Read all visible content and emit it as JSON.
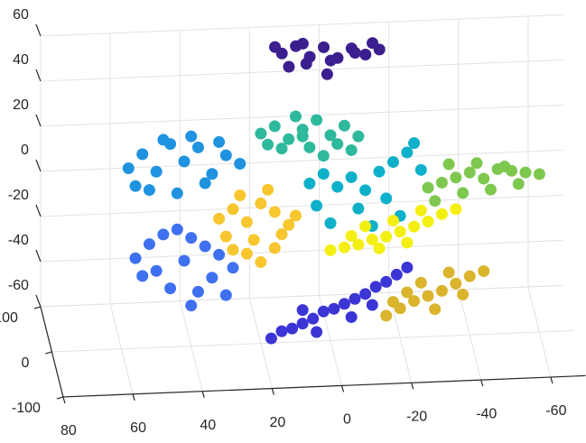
{
  "chart_data": {
    "type": "scatter3d",
    "xlim": [
      -70,
      80
    ],
    "ylim": [
      -100,
      100
    ],
    "zlim": [
      -60,
      60
    ],
    "xticks": [
      -60,
      -40,
      -20,
      0,
      20,
      40,
      60,
      80
    ],
    "yticks": [
      -100,
      0,
      100
    ],
    "zticks": [
      -60,
      -40,
      -20,
      0,
      20,
      40,
      60
    ],
    "grid": true,
    "series": [
      {
        "color": "#3b1f8f",
        "x": [
          12,
          8,
          4,
          0,
          -4,
          -8,
          -12,
          -16,
          10,
          5,
          -2,
          -9,
          14,
          -1,
          6,
          -14
        ],
        "y": [
          60,
          60,
          60,
          60,
          60,
          60,
          60,
          60,
          60,
          60,
          60,
          60,
          60,
          60,
          60,
          60
        ],
        "z": [
          56,
          59,
          54,
          58,
          53,
          57,
          54,
          56,
          50,
          51,
          52,
          55,
          59,
          46,
          60,
          59
        ]
      },
      {
        "color": "#2eb89c",
        "x": [
          20,
          16,
          12,
          8,
          4,
          0,
          -4,
          -8,
          14,
          6,
          -2,
          10,
          18,
          2,
          -6,
          8
        ],
        "y": [
          0,
          0,
          0,
          0,
          0,
          0,
          0,
          0,
          0,
          0,
          0,
          0,
          0,
          0,
          0,
          0
        ],
        "z": [
          33,
          36,
          30,
          34,
          38,
          31,
          35,
          30,
          26,
          26,
          27,
          40,
          28,
          22,
          24,
          31
        ]
      },
      {
        "color": "#1f93e0",
        "x": [
          58,
          54,
          50,
          46,
          42,
          38,
          34,
          30,
          26,
          52,
          44,
          36,
          48,
          40,
          32,
          56
        ],
        "y": [
          0,
          0,
          0,
          0,
          0,
          0,
          0,
          0,
          0,
          0,
          0,
          0,
          0,
          0,
          0,
          0
        ],
        "z": [
          20,
          26,
          18,
          30,
          22,
          28,
          16,
          24,
          20,
          10,
          8,
          12,
          32,
          33,
          30,
          12
        ]
      },
      {
        "color": "#0fb0c9",
        "x": [
          6,
          2,
          -2,
          -6,
          -10,
          -14,
          -18,
          -22,
          -24,
          4,
          -8,
          -16,
          -20,
          0,
          -12,
          -26
        ],
        "y": [
          0,
          0,
          0,
          0,
          0,
          0,
          0,
          0,
          0,
          0,
          0,
          0,
          0,
          0,
          0,
          0
        ],
        "z": [
          10,
          14,
          8,
          12,
          6,
          14,
          18,
          22,
          26,
          0,
          -2,
          2,
          -6,
          -8,
          -10,
          14
        ]
      },
      {
        "color": "#7ec850",
        "x": [
          -28,
          -32,
          -36,
          -40,
          -44,
          -48,
          -52,
          -56,
          -60,
          -34,
          -42,
          -50,
          -38,
          -46,
          -54,
          -30
        ],
        "y": [
          0,
          0,
          0,
          0,
          0,
          0,
          0,
          0,
          0,
          0,
          0,
          0,
          0,
          0,
          0,
          0
        ],
        "z": [
          6,
          8,
          10,
          12,
          9,
          13,
          12,
          11,
          10,
          16,
          16,
          14,
          3,
          4,
          6,
          0
        ]
      },
      {
        "color": "#f8c62e",
        "x": [
          32,
          28,
          24,
          20,
          16,
          12,
          30,
          22,
          14,
          26,
          18,
          24,
          20,
          28,
          16,
          10
        ],
        "y": [
          0,
          0,
          0,
          0,
          0,
          0,
          0,
          0,
          0,
          0,
          0,
          0,
          0,
          0,
          0,
          0
        ],
        "z": [
          -4,
          0,
          -6,
          2,
          -2,
          -8,
          -12,
          -14,
          -12,
          6,
          8,
          -20,
          -24,
          -18,
          -18,
          -4
        ]
      },
      {
        "color": "#f4ef12",
        "x": [
          0,
          -4,
          -8,
          -12,
          -16,
          -20,
          -24,
          -28,
          -32,
          -36,
          -10,
          -18,
          -26,
          -6,
          -14,
          -22
        ],
        "y": [
          0,
          0,
          0,
          0,
          0,
          0,
          0,
          0,
          0,
          0,
          0,
          0,
          0,
          0,
          0,
          0
        ],
        "z": [
          -20,
          -19,
          -18,
          -16,
          -15,
          -13,
          -11,
          -9,
          -6,
          -4,
          -10,
          -8,
          -4,
          -14,
          -20,
          -18
        ]
      },
      {
        "color": "#3f70f0",
        "x": [
          56,
          52,
          48,
          44,
          40,
          36,
          32,
          28,
          50,
          42,
          34,
          46,
          38,
          30,
          54,
          40
        ],
        "y": [
          0,
          0,
          0,
          0,
          0,
          0,
          0,
          0,
          0,
          0,
          0,
          0,
          0,
          0,
          0,
          0
        ],
        "z": [
          -20,
          -14,
          -10,
          -8,
          -12,
          -16,
          -20,
          -26,
          -26,
          -22,
          -30,
          -34,
          -36,
          -38,
          -28,
          -42
        ]
      },
      {
        "color": "#3b35d6",
        "x": [
          17,
          14,
          11,
          8,
          5,
          2,
          -1,
          -4,
          -7,
          -10,
          -13,
          -16,
          -19,
          -22,
          4,
          -6,
          8,
          -12
        ],
        "y": [
          0,
          0,
          0,
          0,
          0,
          0,
          0,
          0,
          0,
          0,
          0,
          0,
          0,
          0,
          0,
          0,
          0,
          0
        ],
        "z": [
          -58,
          -55,
          -54,
          -52,
          -50,
          -47,
          -46,
          -44,
          -42,
          -40,
          -37,
          -35,
          -32,
          -29,
          -56,
          -50,
          -46,
          -45
        ]
      },
      {
        "color": "#d9b42c",
        "x": [
          -16,
          -20,
          -24,
          -28,
          -32,
          -36,
          -40,
          -44,
          -26,
          -34,
          -30,
          -22,
          -38,
          -18
        ],
        "y": [
          0,
          0,
          0,
          0,
          0,
          0,
          0,
          0,
          0,
          0,
          0,
          0,
          0,
          0
        ],
        "z": [
          -50,
          -47,
          -44,
          -42,
          -40,
          -37,
          -34,
          -32,
          -36,
          -32,
          -48,
          -40,
          -42,
          -44
        ]
      }
    ]
  }
}
